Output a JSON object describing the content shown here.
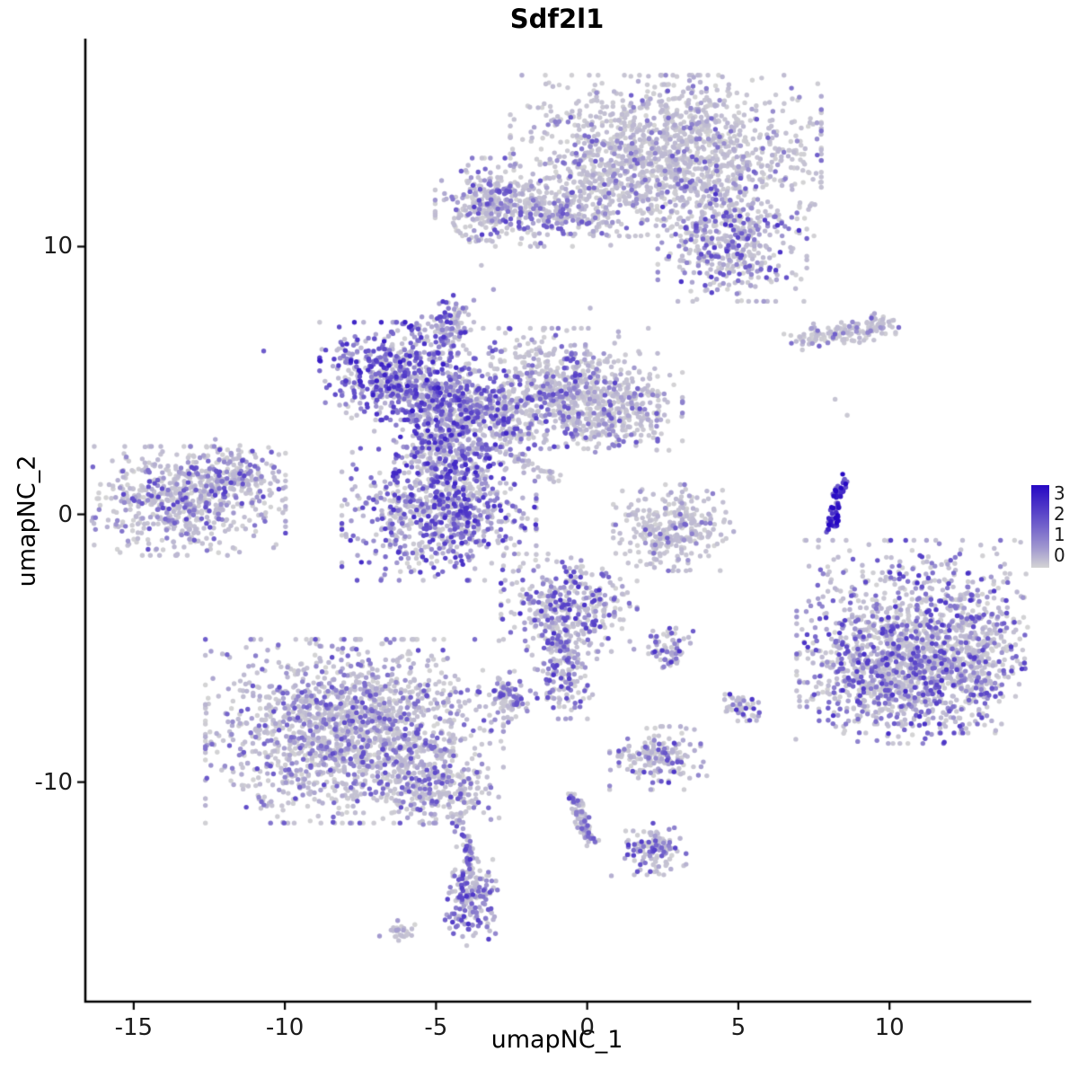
{
  "chart_data": {
    "type": "scatter",
    "title": "Sdf2l1",
    "xlabel": "umapNC_1",
    "ylabel": "umapNC_2",
    "xlim": [
      -16.6,
      14.6
    ],
    "ylim": [
      -18.2,
      17.7
    ],
    "xticks": [
      "-15",
      "-10",
      "-5",
      "0",
      "5",
      "10"
    ],
    "xtick_values": [
      -15,
      -10,
      -5,
      0,
      5,
      10
    ],
    "yticks": [
      "10",
      "0",
      "-10"
    ],
    "ytick_values": [
      10,
      0,
      -10
    ],
    "grid": false,
    "legend": {
      "labels": [
        "3",
        "2",
        "1",
        "0"
      ],
      "values": [
        3,
        2,
        1,
        0
      ],
      "position": "right",
      "min": 0,
      "max": 3
    },
    "colormap": {
      "low": "#D4D4D4",
      "high": "#2608C4"
    },
    "point_radius": 2.7,
    "seed": 42,
    "clusters": [
      {
        "name": "top-main",
        "cx": 2.6,
        "cy": 13.4,
        "rx": 2.4,
        "ry": 1.4,
        "n": 1500,
        "z": 0.68,
        "m": 1.7,
        "g": 2.0
      },
      {
        "name": "top-left-arm",
        "cx": -1.6,
        "cy": 11.4,
        "rx": 1.6,
        "ry": 0.65,
        "n": 420,
        "z": 0.6,
        "m": 1.8,
        "g": 1.8
      },
      {
        "name": "top-left-knob",
        "cx": -3.3,
        "cy": 11.7,
        "rx": 0.55,
        "ry": 0.75,
        "n": 150,
        "z": 0.42,
        "m": 2.1,
        "g": 1.4
      },
      {
        "name": "top-right-ext",
        "cx": 4.8,
        "cy": 10.1,
        "rx": 1.15,
        "ry": 1.0,
        "n": 430,
        "z": 0.5,
        "m": 2.3,
        "g": 1.5
      },
      {
        "name": "c-knob",
        "cx": -4.65,
        "cy": 7.0,
        "rx": 0.42,
        "ry": 0.55,
        "n": 110,
        "z": 0.3,
        "m": 2.3,
        "g": 1.3
      },
      {
        "name": "c1-dark",
        "cx": -6.6,
        "cy": 5.35,
        "rx": 1.05,
        "ry": 0.85,
        "n": 430,
        "z": 0.24,
        "m": 2.7,
        "g": 1.15
      },
      {
        "name": "c2",
        "cx": -4.9,
        "cy": 4.3,
        "rx": 1.0,
        "ry": 0.8,
        "n": 360,
        "z": 0.3,
        "m": 2.4,
        "g": 1.3
      },
      {
        "name": "c3",
        "cx": -4.5,
        "cy": 2.3,
        "rx": 0.85,
        "ry": 0.95,
        "n": 320,
        "z": 0.3,
        "m": 2.5,
        "g": 1.25
      },
      {
        "name": "c4-lower",
        "cx": -4.9,
        "cy": 0.0,
        "rx": 1.5,
        "ry": 1.15,
        "n": 760,
        "z": 0.3,
        "m": 2.4,
        "g": 1.35
      },
      {
        "name": "c5-east-blob",
        "cx": -1.1,
        "cy": 4.7,
        "rx": 1.6,
        "ry": 1.05,
        "n": 700,
        "z": 0.52,
        "m": 2.1,
        "g": 1.6
      },
      {
        "name": "c6-bridge",
        "cx": -3.1,
        "cy": 3.5,
        "rx": 0.8,
        "ry": 0.6,
        "n": 210,
        "z": 0.4,
        "m": 2.2,
        "g": 1.5
      },
      {
        "name": "c7-east-tail",
        "cx": 0.9,
        "cy": 3.8,
        "rx": 1.05,
        "ry": 0.7,
        "n": 260,
        "z": 0.62,
        "m": 1.8,
        "g": 1.8
      },
      {
        "name": "far-left",
        "cx": -13.3,
        "cy": 0.5,
        "rx": 1.55,
        "ry": 0.95,
        "n": 640,
        "z": 0.55,
        "m": 2.0,
        "g": 1.7
      },
      {
        "name": "far-left-arm",
        "cx": -11.7,
        "cy": 1.5,
        "rx": 0.7,
        "ry": 0.5,
        "n": 130,
        "z": 0.5,
        "m": 2.1,
        "g": 1.6
      },
      {
        "name": "mid-small",
        "cx": 2.9,
        "cy": -0.5,
        "rx": 0.95,
        "ry": 0.75,
        "n": 300,
        "z": 0.72,
        "m": 1.7,
        "g": 1.9
      },
      {
        "name": "right-main",
        "cx": 11.0,
        "cy": -4.4,
        "rx": 1.9,
        "ry": 1.6,
        "n": 950,
        "z": 0.55,
        "m": 2.3,
        "g": 1.55
      },
      {
        "name": "right-lower",
        "cx": 9.7,
        "cy": -6.2,
        "rx": 1.25,
        "ry": 1.1,
        "n": 520,
        "z": 0.45,
        "m": 2.4,
        "g": 1.45
      },
      {
        "name": "right-east",
        "cx": 12.4,
        "cy": -5.7,
        "rx": 0.95,
        "ry": 1.15,
        "n": 330,
        "z": 0.55,
        "m": 2.2,
        "g": 1.6
      },
      {
        "name": "bottom-left",
        "cx": -7.7,
        "cy": -8.1,
        "rx": 2.3,
        "ry": 1.6,
        "n": 1750,
        "z": 0.5,
        "m": 1.9,
        "g": 1.65
      },
      {
        "name": "bl-tail",
        "cx": -4.9,
        "cy": -10.3,
        "rx": 0.8,
        "ry": 0.6,
        "n": 210,
        "z": 0.55,
        "m": 1.9,
        "g": 1.7
      },
      {
        "name": "bl-foot",
        "cx": -3.8,
        "cy": -14.5,
        "rx": 0.42,
        "ry": 0.75,
        "n": 170,
        "z": 0.3,
        "m": 2.3,
        "g": 1.35
      },
      {
        "name": "bl-foot-left",
        "cx": -6.2,
        "cy": -15.6,
        "rx": 0.35,
        "ry": 0.2,
        "n": 28,
        "z": 0.8,
        "m": 1.2,
        "g": 2.0
      },
      {
        "name": "center-bottom",
        "cx": -0.6,
        "cy": -3.3,
        "rx": 1.05,
        "ry": 0.85,
        "n": 340,
        "z": 0.4,
        "m": 2.4,
        "g": 1.4
      },
      {
        "name": "cb-arm",
        "cx": -0.75,
        "cy": -5.6,
        "rx": 0.5,
        "ry": 0.95,
        "n": 210,
        "z": 0.45,
        "m": 2.2,
        "g": 1.5
      },
      {
        "name": "cb-west",
        "cx": -2.55,
        "cy": -6.8,
        "rx": 0.34,
        "ry": 0.45,
        "n": 85,
        "z": 0.45,
        "m": 2.1,
        "g": 1.5
      },
      {
        "name": "cb-east",
        "cx": 2.8,
        "cy": -4.9,
        "rx": 0.36,
        "ry": 0.4,
        "n": 70,
        "z": 0.35,
        "m": 2.3,
        "g": 1.4
      },
      {
        "name": "j-mid",
        "cx": 2.35,
        "cy": -9.1,
        "rx": 0.75,
        "ry": 0.55,
        "n": 175,
        "z": 0.55,
        "m": 2.2,
        "g": 1.6
      },
      {
        "name": "j-tiny",
        "cx": 5.05,
        "cy": -7.25,
        "rx": 0.3,
        "ry": 0.25,
        "n": 45,
        "z": 0.5,
        "m": 2.4,
        "g": 1.4
      },
      {
        "name": "j-foot",
        "cx": 2.2,
        "cy": -12.5,
        "rx": 0.5,
        "ry": 0.45,
        "n": 120,
        "z": 0.45,
        "m": 2.2,
        "g": 1.45
      }
    ],
    "lines": [
      {
        "name": "thin-topright",
        "x1": 7.0,
        "y1": 6.55,
        "x2": 10.15,
        "y2": 7.1,
        "jit": 0.22,
        "n": 150,
        "z": 0.72,
        "m": 1.7,
        "g": 1.9
      },
      {
        "name": "c8-strand",
        "x1": -2.7,
        "y1": 2.3,
        "x2": -0.9,
        "y2": 1.2,
        "jit": 0.14,
        "n": 40,
        "z": 0.55,
        "m": 1.6,
        "g": 1.9
      },
      {
        "name": "bl-strand",
        "x1": -4.3,
        "y1": -11.2,
        "x2": -3.7,
        "y2": -13.6,
        "jit": 0.12,
        "n": 70,
        "z": 0.45,
        "m": 2.1,
        "g": 1.5
      },
      {
        "name": "j-strand",
        "x1": -0.55,
        "y1": -10.35,
        "x2": 0.15,
        "y2": -12.3,
        "jit": 0.13,
        "n": 80,
        "z": 0.5,
        "m": 2.1,
        "g": 1.5
      },
      {
        "name": "streak-dark-1",
        "x1": 7.95,
        "y1": -0.75,
        "x2": 8.3,
        "y2": 1.05,
        "jit": 0.06,
        "n": 40,
        "z": 0.03,
        "m": 3.2,
        "g": 0.55
      },
      {
        "name": "streak-dark-2",
        "x1": 8.2,
        "y1": -0.45,
        "x2": 8.5,
        "y2": 1.3,
        "jit": 0.05,
        "n": 28,
        "z": 0.02,
        "m": 3.3,
        "g": 0.5
      }
    ],
    "strays": [
      [
        -10.7,
        6.1,
        1.6
      ],
      [
        -3.1,
        8.4,
        0.6
      ],
      [
        -3.5,
        9.3,
        0.2
      ],
      [
        0.1,
        7.7,
        0.3
      ],
      [
        4.6,
        8.9,
        0.2
      ],
      [
        8.2,
        4.3,
        0.15
      ],
      [
        8.6,
        3.7,
        0.1
      ],
      [
        -12.3,
        2.8,
        0.5
      ],
      [
        2.3,
        2.4,
        0.2
      ],
      [
        8.3,
        -1.6,
        0.25
      ],
      [
        8.55,
        -2.1,
        0.1
      ],
      [
        9.1,
        -1.9,
        0.3
      ],
      [
        0.8,
        -13.5,
        0.4
      ],
      [
        5.6,
        -7.7,
        0.3
      ],
      [
        8.45,
        1.5,
        3.2
      ],
      [
        4.4,
        -2.1,
        0.1
      ],
      [
        6.9,
        -8.4,
        0.2
      ]
    ]
  }
}
